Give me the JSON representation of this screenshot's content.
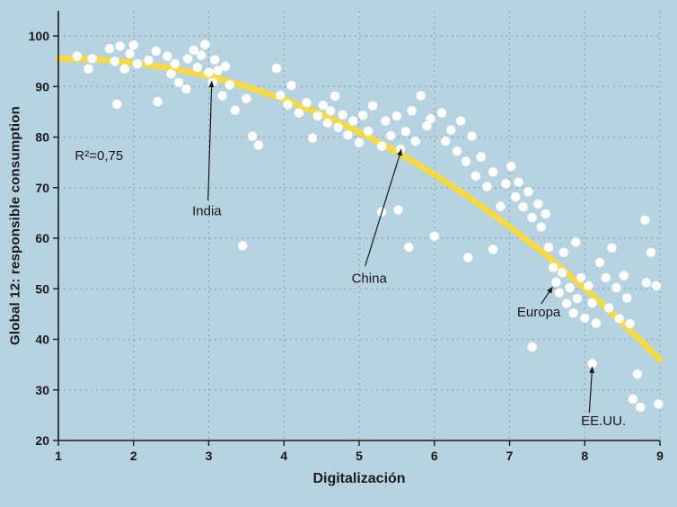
{
  "chart_data": {
    "type": "scatter",
    "title": "",
    "xlabel": "Digitalización",
    "ylabel": "Global 12: responsible consumption",
    "xlim": [
      1,
      9
    ],
    "ylim": [
      20,
      100
    ],
    "x_ticks": [
      1,
      2,
      3,
      4,
      5,
      6,
      7,
      8,
      9
    ],
    "y_ticks": [
      20,
      30,
      40,
      50,
      60,
      70,
      80,
      90,
      100
    ],
    "grid": "dashed",
    "legend": "none",
    "r_squared_label": "R²=0,75",
    "r_squared_pos": [
      1.22,
      75.5
    ],
    "colors": {
      "background": "#b7d2e0",
      "dot": "#ffffff",
      "trend": "#f5d947",
      "grid": "#7f98a6",
      "axis": "#1a1a1a",
      "text": "#1a1a1a"
    },
    "trend": {
      "type": "quadratic",
      "x": [
        1,
        1.5,
        2,
        2.5,
        3,
        3.5,
        4,
        4.5,
        5,
        5.5,
        6,
        6.5,
        7,
        7.5,
        8,
        8.5,
        9
      ],
      "y": [
        95.5,
        95.4,
        94.7,
        93.6,
        92.1,
        90.0,
        87.5,
        84.5,
        81.0,
        77.1,
        72.6,
        67.7,
        62.3,
        56.5,
        50.1,
        43.3,
        36.0
      ]
    },
    "annotations": [
      {
        "label": "India",
        "text_pos": [
          2.78,
          64.5
        ],
        "arrow_from": [
          2.99,
          67.5
        ],
        "arrow_to": [
          3.04,
          91.0
        ]
      },
      {
        "label": "China",
        "text_pos": [
          4.9,
          51.2
        ],
        "arrow_from": [
          5.08,
          54.5
        ],
        "arrow_to": [
          5.56,
          77.5
        ]
      },
      {
        "label": "Europa",
        "text_pos": [
          7.1,
          44.5
        ],
        "arrow_from": [
          7.42,
          47.0
        ],
        "arrow_to": [
          7.57,
          50.3
        ]
      },
      {
        "label": "EE.UU.",
        "text_pos": [
          7.95,
          23.0
        ],
        "arrow_from": [
          8.06,
          25.5
        ],
        "arrow_to": [
          8.1,
          34.5
        ]
      }
    ],
    "points": [
      [
        1.25,
        96
      ],
      [
        1.45,
        95.5
      ],
      [
        1.4,
        93.5
      ],
      [
        1.68,
        97.5
      ],
      [
        1.75,
        95
      ],
      [
        1.82,
        98
      ],
      [
        1.88,
        93.5
      ],
      [
        1.95,
        96.5
      ],
      [
        2.0,
        98.2
      ],
      [
        2.05,
        94.5
      ],
      [
        1.78,
        86.5
      ],
      [
        2.2,
        95.2
      ],
      [
        2.3,
        97
      ],
      [
        2.32,
        87
      ],
      [
        2.45,
        96
      ],
      [
        2.5,
        92.5
      ],
      [
        2.55,
        94.5
      ],
      [
        2.6,
        90.8
      ],
      [
        2.7,
        89.5
      ],
      [
        2.72,
        95.5
      ],
      [
        2.8,
        97.2
      ],
      [
        2.85,
        93.8
      ],
      [
        2.9,
        96.2
      ],
      [
        2.95,
        98.3
      ],
      [
        3.0,
        92.8
      ],
      [
        3.05,
        90.8
      ],
      [
        3.08,
        95.3
      ],
      [
        3.12,
        93.2
      ],
      [
        3.18,
        88.2
      ],
      [
        3.22,
        94
      ],
      [
        3.28,
        90.3
      ],
      [
        3.35,
        85.3
      ],
      [
        3.45,
        58.5
      ],
      [
        3.5,
        87.6
      ],
      [
        3.58,
        80.2
      ],
      [
        3.66,
        78.4
      ],
      [
        3.9,
        93.6
      ],
      [
        3.95,
        88.3
      ],
      [
        4.05,
        86.4
      ],
      [
        4.1,
        90.2
      ],
      [
        4.2,
        84.8
      ],
      [
        4.3,
        86.8
      ],
      [
        4.38,
        79.8
      ],
      [
        4.45,
        84.2
      ],
      [
        4.52,
        86.3
      ],
      [
        4.58,
        82.8
      ],
      [
        4.62,
        85.2
      ],
      [
        4.68,
        88.1
      ],
      [
        4.72,
        81.9
      ],
      [
        4.78,
        84.4
      ],
      [
        4.85,
        80.4
      ],
      [
        4.92,
        83.2
      ],
      [
        5.0,
        78.9
      ],
      [
        5.05,
        84.3
      ],
      [
        5.12,
        81.2
      ],
      [
        5.18,
        86.2
      ],
      [
        5.3,
        78.2
      ],
      [
        5.35,
        83.2
      ],
      [
        5.42,
        80.3
      ],
      [
        5.5,
        84.2
      ],
      [
        5.55,
        77.6
      ],
      [
        5.62,
        81.1
      ],
      [
        5.7,
        85.2
      ],
      [
        5.75,
        79.2
      ],
      [
        5.82,
        88.2
      ],
      [
        5.9,
        82.2
      ],
      [
        5.95,
        83.6
      ],
      [
        5.3,
        65.2
      ],
      [
        5.52,
        65.6
      ],
      [
        5.66,
        58.2
      ],
      [
        6.0,
        60.4
      ],
      [
        6.1,
        84.8
      ],
      [
        6.15,
        79.2
      ],
      [
        6.22,
        81.4
      ],
      [
        6.3,
        77.2
      ],
      [
        6.35,
        83.2
      ],
      [
        6.42,
        75.2
      ],
      [
        6.5,
        80.2
      ],
      [
        6.55,
        72.3
      ],
      [
        6.62,
        76.1
      ],
      [
        6.7,
        70.2
      ],
      [
        6.78,
        73.1
      ],
      [
        6.88,
        66.3
      ],
      [
        6.95,
        70.8
      ],
      [
        6.45,
        56.2
      ],
      [
        6.78,
        57.8
      ],
      [
        7.02,
        74.2
      ],
      [
        7.08,
        68.2
      ],
      [
        7.12,
        71.1
      ],
      [
        7.18,
        66.2
      ],
      [
        7.25,
        69.2
      ],
      [
        7.3,
        64.1
      ],
      [
        7.38,
        66.8
      ],
      [
        7.42,
        62.2
      ],
      [
        7.48,
        64.8
      ],
      [
        7.52,
        58.2
      ],
      [
        7.58,
        54.2
      ],
      [
        7.3,
        38.5
      ],
      [
        7.62,
        51.3
      ],
      [
        7.66,
        49.2
      ],
      [
        7.7,
        53.2
      ],
      [
        7.72,
        57.2
      ],
      [
        7.76,
        47.1
      ],
      [
        7.8,
        50.2
      ],
      [
        7.85,
        45.2
      ],
      [
        7.88,
        59.2
      ],
      [
        7.9,
        48.1
      ],
      [
        7.95,
        52.2
      ],
      [
        8.0,
        44.2
      ],
      [
        8.05,
        50.6
      ],
      [
        8.1,
        47.2
      ],
      [
        8.1,
        35.2
      ],
      [
        8.15,
        43.2
      ],
      [
        8.2,
        55.2
      ],
      [
        8.28,
        52.2
      ],
      [
        8.32,
        46.2
      ],
      [
        8.36,
        58.1
      ],
      [
        8.42,
        50.2
      ],
      [
        8.46,
        44.1
      ],
      [
        8.52,
        52.6
      ],
      [
        8.56,
        48.2
      ],
      [
        8.6,
        43.1
      ],
      [
        8.64,
        28.2
      ],
      [
        8.7,
        33.1
      ],
      [
        8.74,
        26.6
      ],
      [
        8.8,
        63.6
      ],
      [
        8.82,
        51.2
      ],
      [
        8.88,
        57.2
      ],
      [
        8.95,
        50.6
      ],
      [
        8.98,
        27.2
      ]
    ]
  }
}
